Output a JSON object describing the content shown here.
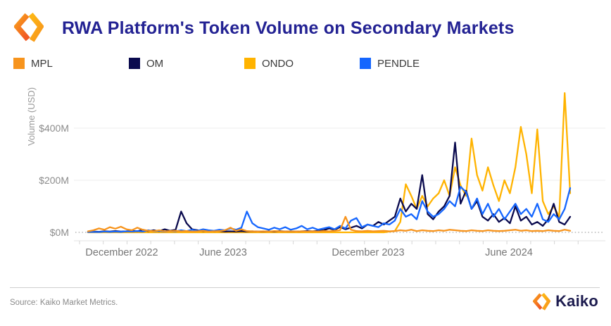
{
  "header": {
    "title": "RWA Platform's Token Volume on Secondary Markets"
  },
  "legend": [
    {
      "label": "MPL",
      "color": "#F7941D"
    },
    {
      "label": "OM",
      "color": "#0A0A4E"
    },
    {
      "label": "ONDO",
      "color": "#FFB300"
    },
    {
      "label": "PENDLE",
      "color": "#1566FE"
    }
  ],
  "chart_data": {
    "type": "line",
    "title": "RWA Platform's Token Volume on Secondary Markets",
    "xlabel": "",
    "ylabel": "Volume (USD)",
    "ylim": [
      0,
      560
    ],
    "grid": "horizontal",
    "zero_line_style": "dotted",
    "legend_position": "top",
    "y_ticks": [
      "$0M",
      "$200M",
      "$400M"
    ],
    "x_ticks": [
      "December 2022",
      "June 2023",
      "December 2023",
      "June 2024"
    ],
    "x_start": "2022-12-10",
    "x_end": "2024-08-12",
    "interval": "weekly",
    "units": "USD millions",
    "series": [
      {
        "name": "MPL",
        "color": "#F7941D",
        "values": [
          4,
          8,
          15,
          10,
          20,
          14,
          22,
          12,
          8,
          18,
          10,
          6,
          5,
          8,
          4,
          5,
          6,
          4,
          5,
          3,
          4,
          6,
          3,
          4,
          5,
          8,
          18,
          6,
          12,
          5,
          4,
          3,
          4,
          3,
          5,
          4,
          3,
          4,
          3,
          4,
          3,
          4,
          3,
          5,
          4,
          6,
          8,
          60,
          10,
          5,
          4,
          6,
          4,
          5,
          6,
          4,
          5,
          8,
          6,
          10,
          5,
          8,
          6,
          5,
          8,
          6,
          10,
          8,
          6,
          5,
          8,
          6,
          5,
          8,
          6,
          5,
          6,
          8,
          10,
          6,
          8,
          5,
          6,
          5,
          8,
          6,
          5,
          10,
          6
        ]
      },
      {
        "name": "OM",
        "color": "#0A0A4E",
        "values": [
          2,
          3,
          2,
          4,
          3,
          5,
          3,
          4,
          6,
          4,
          10,
          5,
          8,
          5,
          12,
          6,
          10,
          80,
          35,
          12,
          8,
          5,
          6,
          4,
          5,
          3,
          4,
          3,
          5,
          3,
          4,
          3,
          3,
          4,
          3,
          5,
          3,
          4,
          3,
          4,
          5,
          4,
          6,
          8,
          15,
          10,
          20,
          12,
          18,
          25,
          15,
          30,
          25,
          40,
          30,
          45,
          60,
          130,
          80,
          110,
          90,
          220,
          70,
          50,
          80,
          100,
          140,
          345,
          110,
          160,
          90,
          120,
          60,
          45,
          70,
          40,
          55,
          35,
          100,
          45,
          60,
          30,
          40,
          25,
          50,
          110,
          40,
          30,
          60
        ]
      },
      {
        "name": "ONDO",
        "color": "#FFB300",
        "values": [
          0,
          0,
          0,
          0,
          0,
          0,
          0,
          0,
          0,
          0,
          0,
          0,
          0,
          0,
          0,
          0,
          0,
          0,
          0,
          0,
          0,
          0,
          0,
          0,
          0,
          0,
          0,
          0,
          0,
          0,
          0,
          0,
          0,
          0,
          0,
          0,
          0,
          0,
          0,
          0,
          0,
          0,
          0,
          0,
          0,
          0,
          0,
          0,
          0,
          0,
          0,
          0,
          0,
          0,
          0,
          3,
          5,
          40,
          185,
          140,
          90,
          140,
          100,
          130,
          150,
          200,
          140,
          250,
          180,
          140,
          360,
          220,
          160,
          250,
          180,
          120,
          200,
          150,
          250,
          405,
          300,
          150,
          395,
          120,
          70,
          100,
          60,
          535,
          150
        ]
      },
      {
        "name": "PENDLE",
        "color": "#1566FE",
        "values": [
          1,
          2,
          1,
          3,
          2,
          3,
          2,
          4,
          3,
          5,
          3,
          8,
          4,
          6,
          3,
          5,
          4,
          8,
          5,
          10,
          6,
          12,
          8,
          6,
          10,
          8,
          15,
          10,
          18,
          80,
          35,
          20,
          15,
          10,
          18,
          12,
          20,
          10,
          15,
          25,
          12,
          18,
          10,
          15,
          20,
          12,
          25,
          15,
          45,
          55,
          20,
          30,
          25,
          20,
          35,
          30,
          45,
          90,
          60,
          70,
          50,
          120,
          80,
          60,
          70,
          90,
          120,
          100,
          175,
          155,
          90,
          130,
          70,
          110,
          60,
          90,
          50,
          80,
          110,
          70,
          90,
          60,
          110,
          50,
          40,
          70,
          50,
          90,
          170
        ]
      }
    ]
  },
  "footer": {
    "source": "Source: Kaiko Market Metrics.",
    "brand": "Kaiko"
  }
}
